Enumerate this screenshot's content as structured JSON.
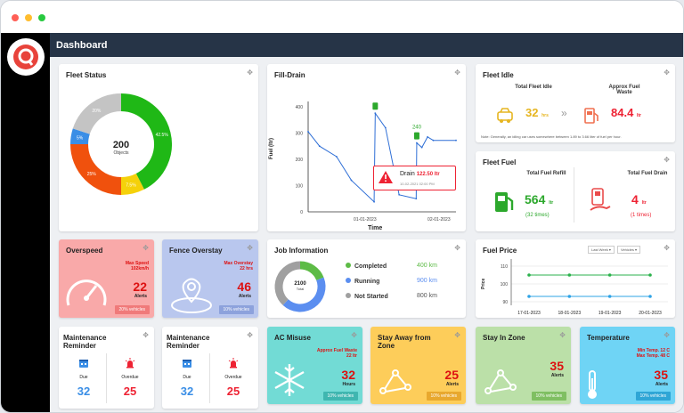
{
  "header": {
    "title": "Dashboard"
  },
  "colors": {
    "running": "#1fb816",
    "idle": "#f5d10a",
    "stopped": "#f0510d",
    "inactive": "#3a8ee6",
    "nodata": "#c4c4c4",
    "header": "#263447",
    "sidebar": "#000000",
    "logo": "#e8433b"
  },
  "fleet_status": {
    "title": "Fleet Status",
    "total": "200",
    "total_label": "Objects",
    "segments": [
      {
        "label": "42.5%",
        "value": 42.5,
        "color": "#1fb816"
      },
      {
        "label": "7.5%",
        "value": 7.5,
        "color": "#f5d10a"
      },
      {
        "label": "25%",
        "value": 25,
        "color": "#f0510d"
      },
      {
        "label": "5%",
        "value": 5,
        "color": "#3a8ee6"
      },
      {
        "label": "20%",
        "value": 20,
        "color": "#c4c4c4"
      }
    ],
    "legend": [
      {
        "count": "85",
        "label": "Running",
        "bg": "#e8f6e6",
        "color": "#1fb816"
      },
      {
        "count": "15",
        "label": "Idle",
        "bg": "#fdf4d3",
        "color": "#f5d10a"
      },
      {
        "count": "50",
        "label": "Stopped",
        "bg": "#fde3d6",
        "color": "#f0510d"
      },
      {
        "count": "10",
        "label": "Inactive",
        "bg": "#e0ecf9",
        "color": "#3a8ee6"
      },
      {
        "count": "40",
        "label": "No Data",
        "bg": "#ededed",
        "color": "#c4c4c4"
      }
    ]
  },
  "fill_drain": {
    "title": "Fill-Drain",
    "ylabel": "Fuel (ltr)",
    "xlabel": "Time",
    "yticks": [
      "400",
      "300",
      "200",
      "100",
      "0"
    ],
    "xticks": [
      "01-01-2023",
      "02-01-2023"
    ],
    "peak_label": "240",
    "alert_title": "Drain",
    "alert_value": "122.50 ltr",
    "alert_time": "10-02-2021 02:00 PM"
  },
  "chart_data": {
    "type": "line",
    "title": "Fill-Drain",
    "xlabel": "Time",
    "ylabel": "Fuel (ltr)",
    "ylim": [
      0,
      420
    ],
    "xticks": [
      "01-01-2023",
      "02-01-2023"
    ],
    "series": [
      {
        "values": [
          [
            0,
            305
          ],
          [
            0.1,
            250
          ],
          [
            0.25,
            210
          ],
          [
            0.38,
            120
          ],
          [
            0.58,
            38
          ],
          [
            0.59,
            375
          ],
          [
            0.68,
            320
          ],
          [
            0.8,
            65
          ],
          [
            0.95,
            50
          ],
          [
            0.955,
            262
          ],
          [
            1.0,
            245
          ],
          [
            1.05,
            285
          ],
          [
            1.1,
            272
          ],
          [
            1.3,
            272
          ]
        ]
      }
    ]
  },
  "fleet_idle": {
    "title": "Fleet Idle",
    "total_label": "Total Fleet Idle",
    "total_value": "32",
    "total_unit": "hrs",
    "waste_label": "Approx Fuel Waste",
    "waste_value": "84.4",
    "waste_unit": "ltr",
    "note": "Note: Generally, an idling car uses somewhere between 1.89 to 3.66 liter of fuel per hour."
  },
  "fleet_fuel": {
    "title": "Fleet Fuel",
    "refill_label": "Total Fuel Refill",
    "refill_value": "564",
    "refill_unit": "ltr",
    "refill_times": "(32 times)",
    "drain_label": "Total Fuel Drain",
    "drain_value": "4",
    "drain_unit": "ltr",
    "drain_times": "(1 times)"
  },
  "overspeed": {
    "title": "Overspeed",
    "sub": "Max Speed",
    "sub2": "102km/h",
    "value": "22",
    "alerts": "Alerts",
    "badge": "20% vehicles"
  },
  "fence": {
    "title": "Fence Overstay",
    "sub": "Max Overstay",
    "sub2": "22 hrs",
    "value": "46",
    "alerts": "Alerts",
    "badge": "10% vehicles"
  },
  "job": {
    "title": "Job Information",
    "total": "2100",
    "total_label": "Total",
    "items": [
      {
        "label": "Completed",
        "value": "400",
        "unit": "km",
        "color": "#5dbb46"
      },
      {
        "label": "Running",
        "value": "900",
        "unit": "km",
        "color": "#5b8ef0"
      },
      {
        "label": "Not Started",
        "value": "800",
        "unit": "km",
        "color": "#a0a0a0"
      }
    ]
  },
  "fuel_price": {
    "title": "Fuel Price",
    "sel1": "Last Week ▾",
    "sel2": "Vehicles ▾",
    "ylabel": "Price",
    "yticks": [
      "110",
      "100",
      "90"
    ],
    "xticks": [
      "17-01-2023",
      "18-01-2023",
      "19-01-2023",
      "20-01-2023"
    ]
  },
  "fuel_price_chart": {
    "type": "line",
    "ylim": [
      88,
      112
    ],
    "series": [
      {
        "color": "#2bb24c",
        "values": [
          105,
          105,
          105,
          105
        ]
      },
      {
        "color": "#2ea3e6",
        "values": [
          93,
          93,
          93,
          93
        ]
      }
    ]
  },
  "maint1": {
    "title": "Maintenance Reminder",
    "due": "Due",
    "overdue": "Overdue",
    "due_val": "32",
    "overdue_val": "25"
  },
  "maint2": {
    "title": "Maintenance Reminder",
    "due": "Due",
    "overdue": "Overdue",
    "due_val": "32",
    "overdue_val": "25"
  },
  "ac": {
    "title": "AC Misuse",
    "sub": "Approx Fuel Waste",
    "sub2": "22 ltr",
    "value": "32",
    "alerts": "Hours",
    "badge": "10% vehicles"
  },
  "stayaway": {
    "title": "Stay Away from Zone",
    "value": "25",
    "alerts": "Alerts",
    "badge": "10% vehicles"
  },
  "stayin": {
    "title": "Stay In Zone",
    "value": "35",
    "alerts": "Alerts",
    "badge": "10% vehicles"
  },
  "temp": {
    "title": "Temperature",
    "sub": "Min Temp. 12 C",
    "sub2": "Max Temp. 48 C",
    "value": "35",
    "alerts": "Alerts",
    "badge": "10% vehicles"
  }
}
